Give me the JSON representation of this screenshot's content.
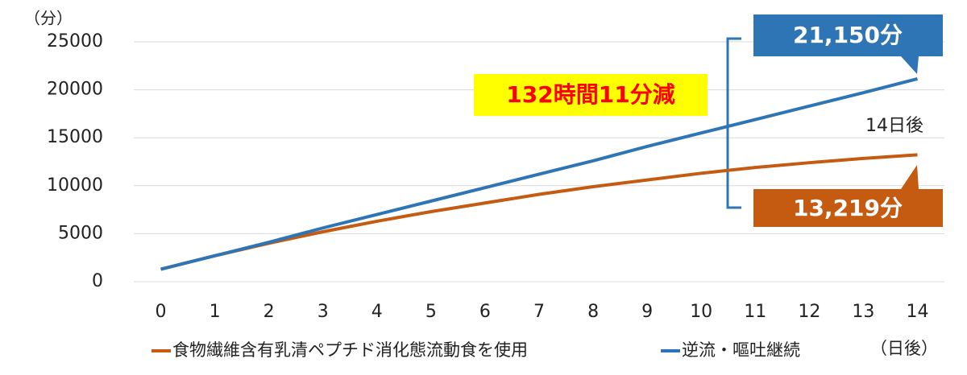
{
  "chart_data": {
    "type": "line",
    "y_unit_label": "（分）",
    "x_unit_label": "（日後）",
    "x": [
      0,
      1,
      2,
      3,
      4,
      5,
      6,
      7,
      8,
      9,
      10,
      11,
      12,
      13,
      14
    ],
    "xlim": [
      -0.5,
      14.5
    ],
    "xticks": [
      0,
      1,
      2,
      3,
      4,
      5,
      6,
      7,
      8,
      9,
      10,
      11,
      12,
      13,
      14
    ],
    "ylim": [
      0,
      25000
    ],
    "yticks": [
      0,
      5000,
      10000,
      15000,
      20000,
      25000
    ],
    "grid": true,
    "series": [
      {
        "name": "食物繊維含有乳清ペプチド消化態流動食を使用",
        "color": "#c55a11",
        "values": [
          1300,
          2700,
          4000,
          5200,
          6300,
          7300,
          8200,
          9100,
          9900,
          10600,
          11300,
          11900,
          12400,
          12850,
          13219
        ]
      },
      {
        "name": "逆流・嘔吐継続",
        "color": "#2e75b6",
        "values": [
          1300,
          2700,
          4100,
          5600,
          7000,
          8400,
          9800,
          11200,
          12600,
          14100,
          15500,
          16900,
          18300,
          19700,
          21150
        ]
      }
    ],
    "annotations": {
      "difference": "132時間11分減",
      "blue_end": "21,150分",
      "orange_end": "13,219分",
      "day_label": "14日後"
    }
  }
}
